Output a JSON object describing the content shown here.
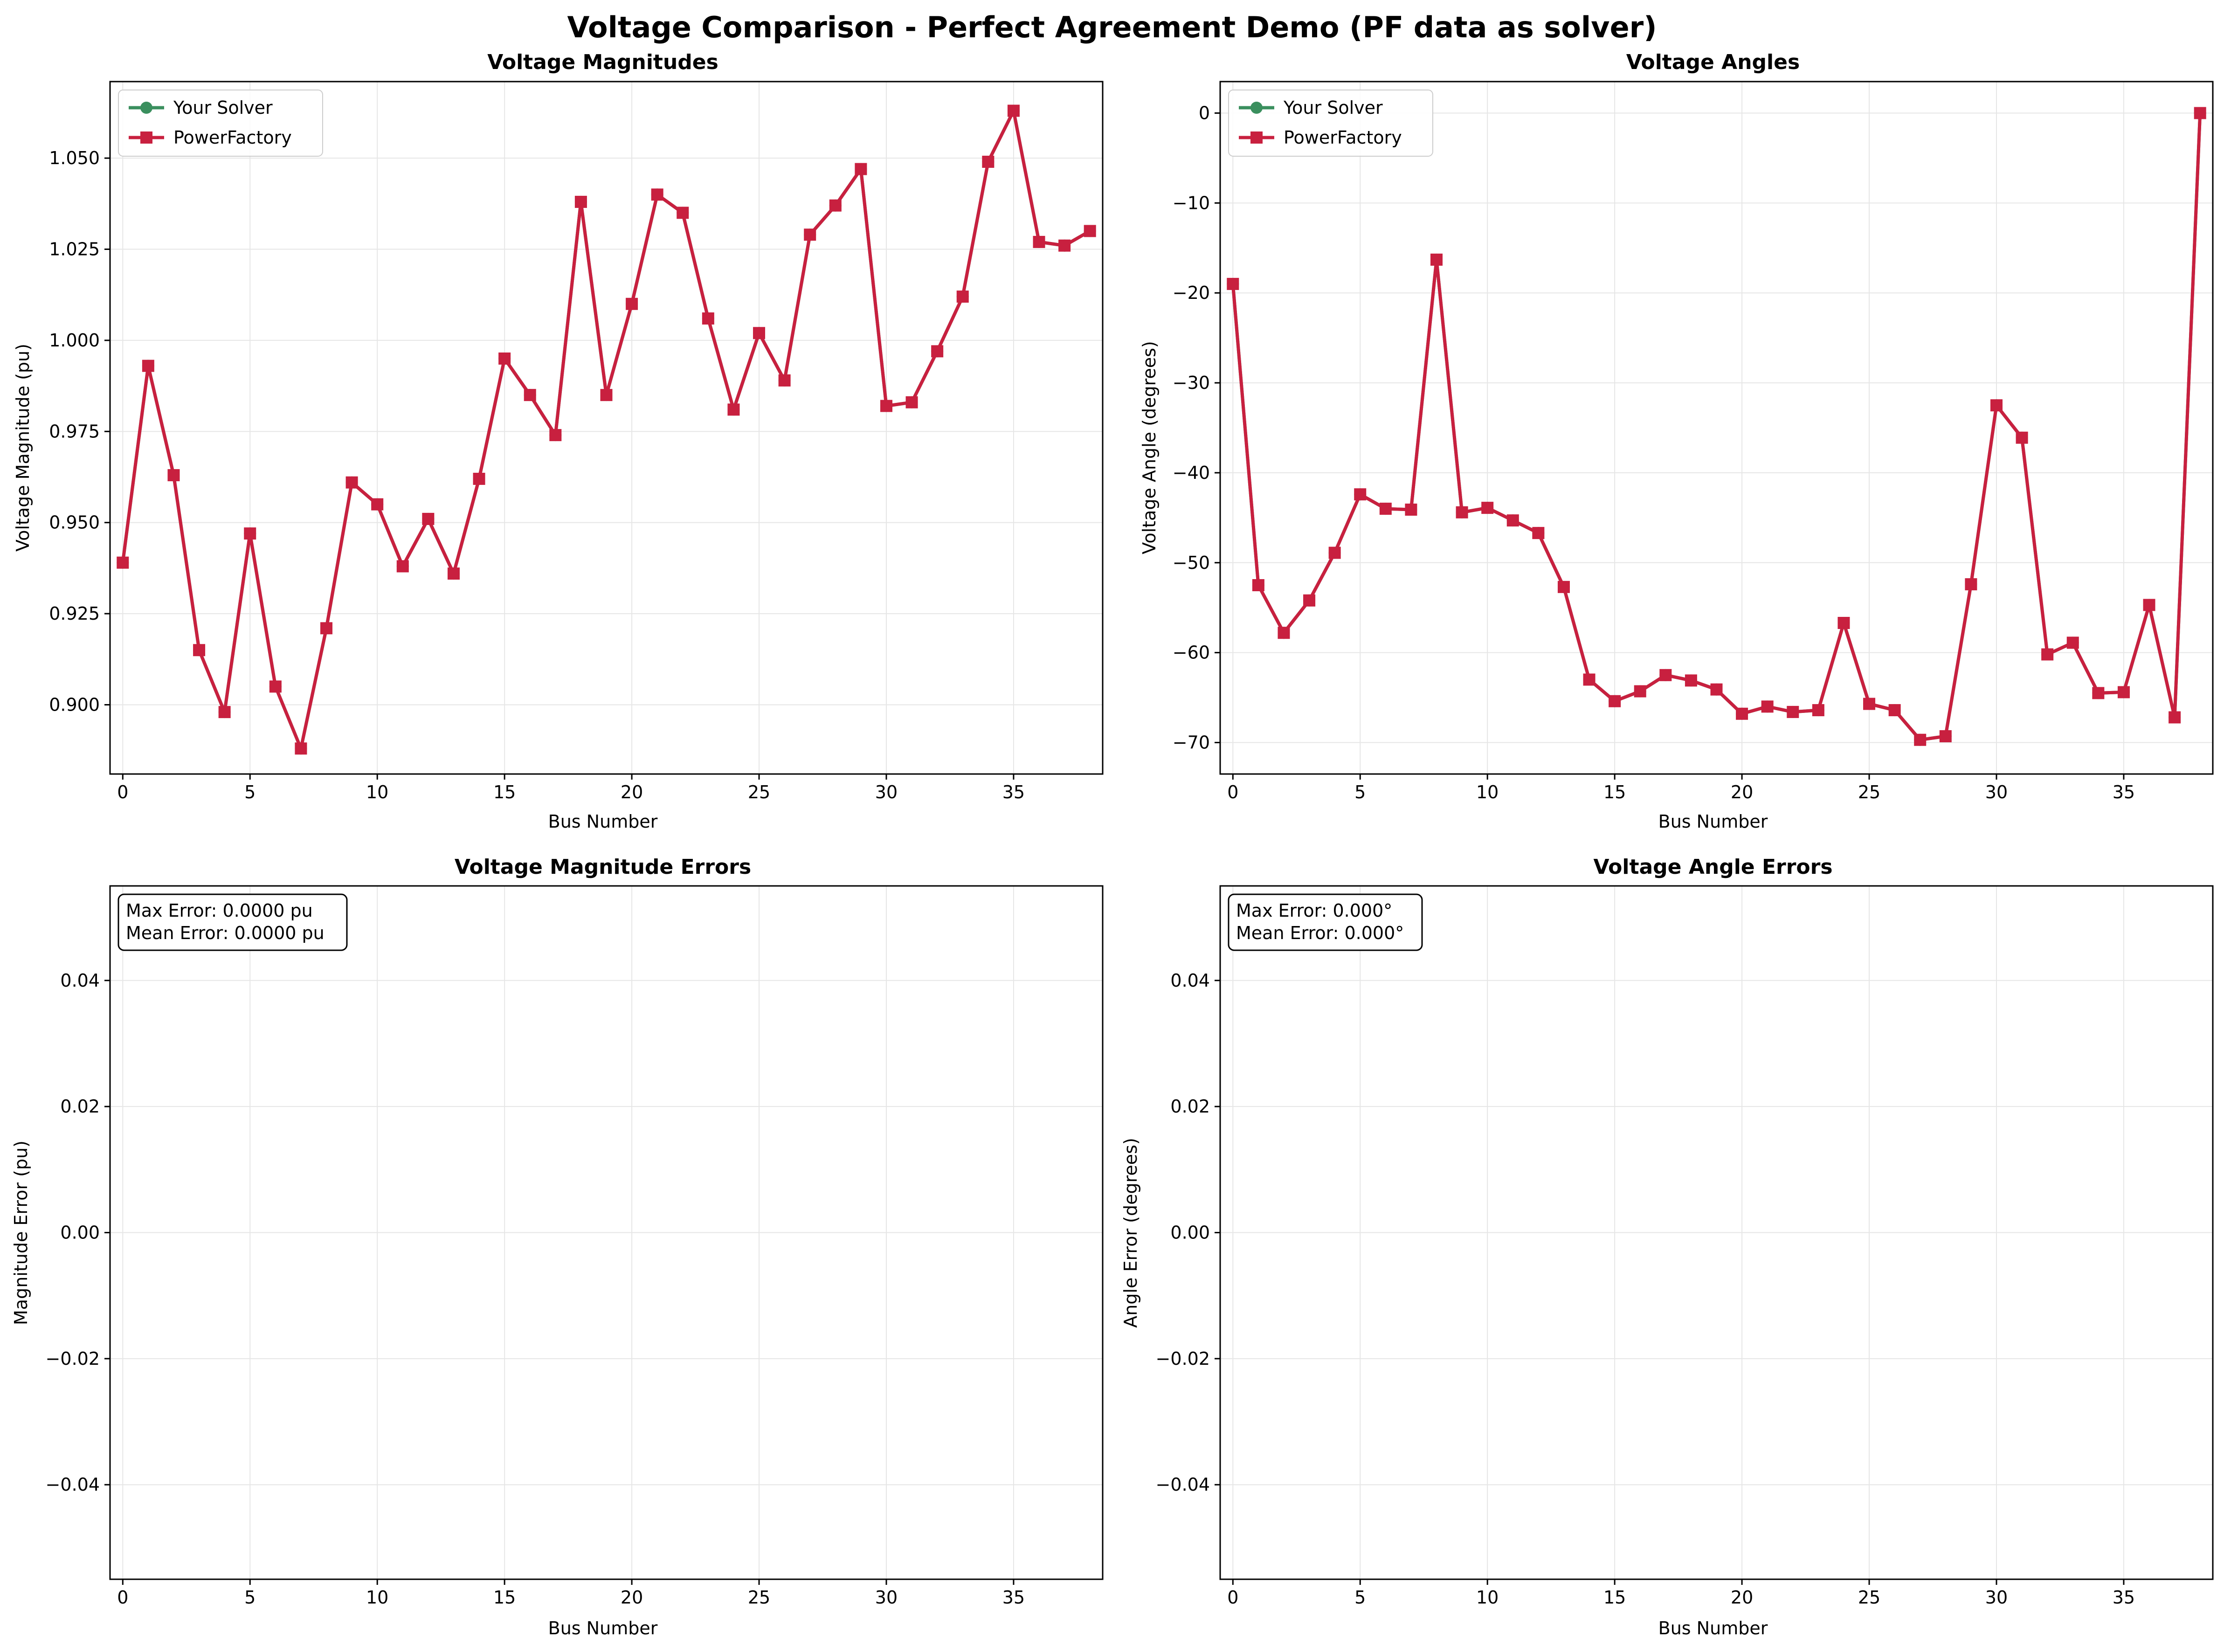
{
  "suptitle": "Voltage Comparison - Perfect Agreement Demo (PF data as solver)",
  "colors": {
    "solver": "#3a8f5e",
    "powerfactory": "#c8203f",
    "grid": "#e6e6e6",
    "axes": "#000000"
  },
  "chart_data": [
    {
      "id": "mag",
      "type": "line",
      "title": "Voltage Magnitudes",
      "xlabel": "Bus Number",
      "ylabel": "Voltage Magnitude (pu)",
      "xlim": [
        -0.5,
        38.5
      ],
      "ylim": [
        0.881,
        1.071
      ],
      "xticks": [
        0,
        5,
        10,
        15,
        20,
        25,
        30,
        35
      ],
      "yticks": [
        0.9,
        0.925,
        0.95,
        0.975,
        1.0,
        1.025,
        1.05
      ],
      "ytick_labels": [
        "0.900",
        "0.925",
        "0.950",
        "0.975",
        "1.000",
        "1.025",
        "1.050"
      ],
      "grid": true,
      "legend": "top-left",
      "x": [
        0,
        1,
        2,
        3,
        4,
        5,
        6,
        7,
        8,
        9,
        10,
        11,
        12,
        13,
        14,
        15,
        16,
        17,
        18,
        19,
        20,
        21,
        22,
        23,
        24,
        25,
        26,
        27,
        28,
        29,
        30,
        31,
        32,
        33,
        34,
        35,
        36,
        37,
        38
      ],
      "series": [
        {
          "name": "Your Solver",
          "marker": "circle",
          "color": "#3a8f5e",
          "values": [
            0.939,
            0.993,
            0.963,
            0.915,
            0.898,
            0.947,
            0.905,
            0.888,
            0.921,
            0.961,
            0.955,
            0.938,
            0.951,
            0.936,
            0.962,
            0.995,
            0.985,
            0.974,
            1.038,
            0.985,
            1.01,
            1.04,
            1.035,
            1.006,
            0.981,
            1.002,
            0.989,
            1.029,
            1.037,
            1.047,
            0.982,
            0.983,
            0.997,
            1.012,
            1.049,
            1.063,
            1.027,
            1.026,
            1.03
          ]
        },
        {
          "name": "PowerFactory",
          "marker": "square",
          "color": "#c8203f",
          "values": [
            0.939,
            0.993,
            0.963,
            0.915,
            0.898,
            0.947,
            0.905,
            0.888,
            0.921,
            0.961,
            0.955,
            0.938,
            0.951,
            0.936,
            0.962,
            0.995,
            0.985,
            0.974,
            1.038,
            0.985,
            1.01,
            1.04,
            1.035,
            1.006,
            0.981,
            1.002,
            0.989,
            1.029,
            1.037,
            1.047,
            0.982,
            0.983,
            0.997,
            1.012,
            1.049,
            1.063,
            1.027,
            1.026,
            1.03
          ]
        }
      ]
    },
    {
      "id": "ang",
      "type": "line",
      "title": "Voltage Angles",
      "xlabel": "Bus Number",
      "ylabel": "Voltage Angle (degrees)",
      "xlim": [
        -0.5,
        38.5
      ],
      "ylim": [
        -73.5,
        3.5
      ],
      "xticks": [
        0,
        5,
        10,
        15,
        20,
        25,
        30,
        35
      ],
      "yticks": [
        0,
        -10,
        -20,
        -30,
        -40,
        -50,
        -60,
        -70
      ],
      "ytick_labels": [
        "0",
        "−10",
        "−20",
        "−30",
        "−40",
        "−50",
        "−60",
        "−70"
      ],
      "grid": true,
      "legend": "top-left",
      "x": [
        0,
        1,
        2,
        3,
        4,
        5,
        6,
        7,
        8,
        9,
        10,
        11,
        12,
        13,
        14,
        15,
        16,
        17,
        18,
        19,
        20,
        21,
        22,
        23,
        24,
        25,
        26,
        27,
        28,
        29,
        30,
        31,
        32,
        33,
        34,
        35,
        36,
        37,
        38
      ],
      "series": [
        {
          "name": "Your Solver",
          "marker": "circle",
          "color": "#3a8f5e",
          "values": [
            -19.0,
            -52.5,
            -57.8,
            -54.2,
            -48.9,
            -42.4,
            -44.0,
            -44.1,
            -16.3,
            -44.4,
            -43.9,
            -45.3,
            -46.7,
            -52.7,
            -63.0,
            -65.4,
            -64.3,
            -62.5,
            -63.1,
            -64.1,
            -66.8,
            -66.0,
            -66.6,
            -66.4,
            -56.7,
            -65.7,
            -66.4,
            -69.7,
            -69.3,
            -52.4,
            -32.5,
            -36.1,
            -60.2,
            -58.9,
            -64.5,
            -64.4,
            -54.7,
            -67.2,
            0.0
          ]
        },
        {
          "name": "PowerFactory",
          "marker": "square",
          "color": "#c8203f",
          "values": [
            -19.0,
            -52.5,
            -57.8,
            -54.2,
            -48.9,
            -42.4,
            -44.0,
            -44.1,
            -16.3,
            -44.4,
            -43.9,
            -45.3,
            -46.7,
            -52.7,
            -63.0,
            -65.4,
            -64.3,
            -62.5,
            -63.1,
            -64.1,
            -66.8,
            -66.0,
            -66.6,
            -66.4,
            -56.7,
            -65.7,
            -66.4,
            -69.7,
            -69.3,
            -52.4,
            -32.5,
            -36.1,
            -60.2,
            -58.9,
            -64.5,
            -64.4,
            -54.7,
            -67.2,
            0.0
          ]
        }
      ]
    },
    {
      "id": "magerr",
      "type": "line",
      "title": "Voltage Magnitude Errors",
      "xlabel": "Bus Number",
      "ylabel": "Magnitude Error (pu)",
      "xlim": [
        -0.5,
        38.5
      ],
      "ylim": [
        -0.055,
        0.055
      ],
      "xticks": [
        0,
        5,
        10,
        15,
        20,
        25,
        30,
        35
      ],
      "yticks": [
        0.04,
        0.02,
        0.0,
        -0.02,
        -0.04
      ],
      "ytick_labels": [
        "0.04",
        "0.02",
        "0.00",
        "−0.02",
        "−0.04"
      ],
      "grid": true,
      "annotation": [
        "Max Error: 0.0000 pu",
        "Mean Error: 0.0000 pu"
      ]
    },
    {
      "id": "angerr",
      "type": "line",
      "title": "Voltage Angle Errors",
      "xlabel": "Bus Number",
      "ylabel": "Angle Error (degrees)",
      "xlim": [
        -0.5,
        38.5
      ],
      "ylim": [
        -0.055,
        0.055
      ],
      "xticks": [
        0,
        5,
        10,
        15,
        20,
        25,
        30,
        35
      ],
      "yticks": [
        0.04,
        0.02,
        0.0,
        -0.02,
        -0.04
      ],
      "ytick_labels": [
        "0.04",
        "0.02",
        "0.00",
        "−0.02",
        "−0.04"
      ],
      "grid": true,
      "annotation": [
        "Max Error: 0.000°",
        "Mean Error: 0.000°"
      ]
    }
  ]
}
